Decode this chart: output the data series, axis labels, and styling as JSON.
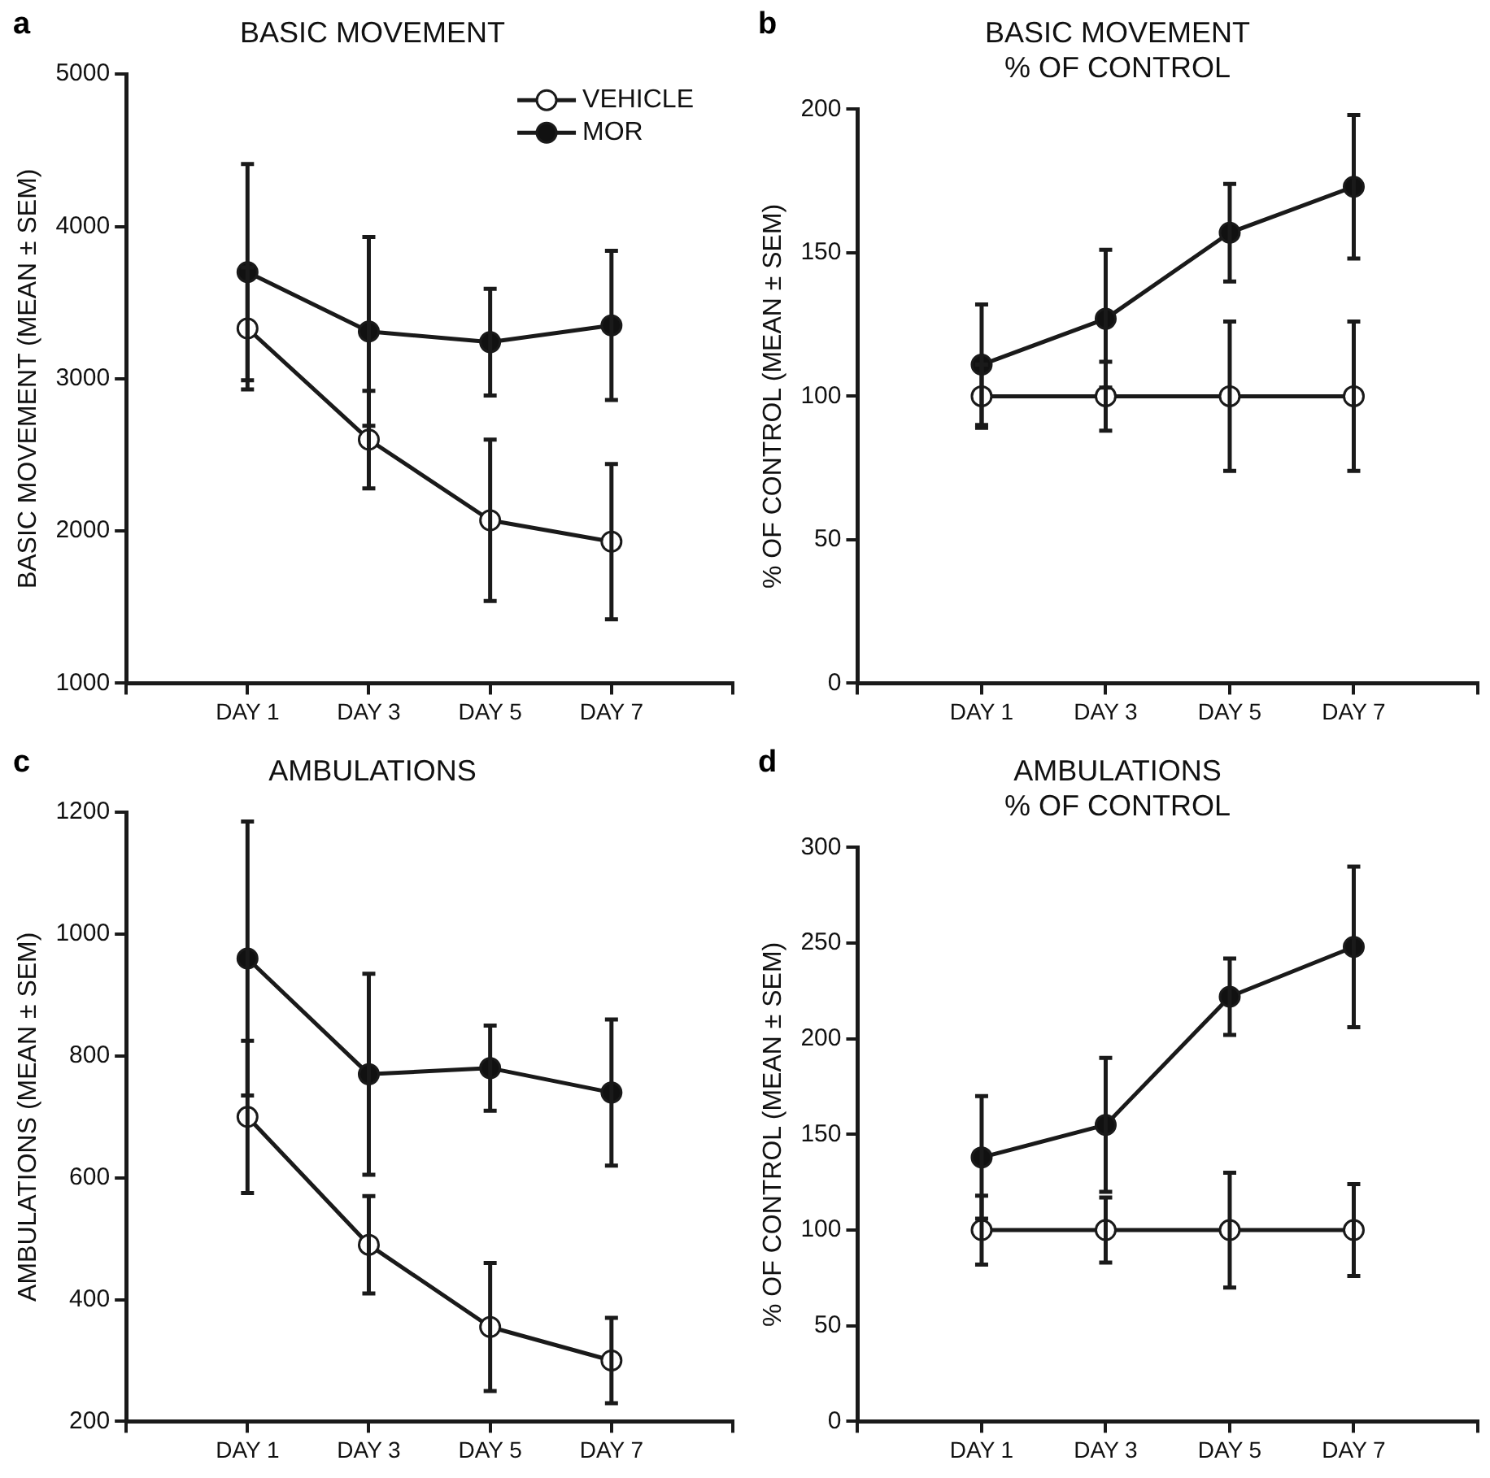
{
  "chart_data": [
    {
      "type": "line",
      "title": "BASIC MOVEMENT",
      "ylabel": "BASIC MOVEMENT (MEAN ± SEM)",
      "annotations": [
        "a"
      ],
      "categories": [
        "DAY 1",
        "DAY 3",
        "DAY 5",
        "DAY 7"
      ],
      "ylim": [
        1000,
        5000
      ],
      "yticks": [
        1000,
        2000,
        3000,
        4000,
        5000
      ],
      "grid": false,
      "legend": "top right",
      "marker": "circle",
      "series": [
        {
          "name": "VEHICLE",
          "color": "#ffffff",
          "values": [
            3330,
            2600,
            2070,
            1930
          ],
          "errors": [
            400,
            320,
            530,
            510
          ]
        },
        {
          "name": "MOR",
          "color": "#111111",
          "values": [
            3700,
            3310,
            3240,
            3350
          ],
          "errors": [
            710,
            620,
            350,
            490
          ]
        }
      ]
    },
    {
      "type": "line",
      "title": "BASIC MOVEMENT",
      "subtitle": "% OF CONTROL",
      "ylabel": "% OF CONTROL (MEAN ± SEM)",
      "annotations": [
        "b"
      ],
      "categories": [
        "DAY 1",
        "DAY 3",
        "DAY 5",
        "DAY 7"
      ],
      "ylim": [
        0,
        200
      ],
      "yticks": [
        0,
        50,
        100,
        150,
        200
      ],
      "grid": false,
      "marker": "circle",
      "series": [
        {
          "color": "#ffffff",
          "values": [
            100,
            100,
            100,
            100
          ],
          "errors": [
            11,
            12,
            26,
            26
          ]
        },
        {
          "color": "#111111",
          "values": [
            111,
            127,
            157,
            173
          ],
          "errors": [
            21,
            24,
            17,
            25
          ]
        }
      ]
    },
    {
      "type": "line",
      "title": "AMBULATIONS",
      "ylabel": "AMBULATIONS (MEAN ± SEM)",
      "annotations": [
        "c"
      ],
      "categories": [
        "DAY 1",
        "DAY 3",
        "DAY 5",
        "DAY 7"
      ],
      "ylim": [
        200,
        1200
      ],
      "yticks": [
        200,
        400,
        600,
        800,
        1000,
        1200
      ],
      "grid": false,
      "marker": "circle",
      "series": [
        {
          "color": "#ffffff",
          "values": [
            700,
            490,
            355,
            300
          ],
          "errors": [
            125,
            80,
            105,
            70
          ]
        },
        {
          "color": "#111111",
          "values": [
            960,
            770,
            780,
            740
          ],
          "errors": [
            225,
            165,
            70,
            120
          ]
        }
      ]
    },
    {
      "type": "line",
      "title": "AMBULATIONS",
      "subtitle": "% OF CONTROL",
      "ylabel": "% OF CONTROL (MEAN ± SEM)",
      "annotations": [
        "d"
      ],
      "categories": [
        "DAY 1",
        "DAY 3",
        "DAY 5",
        "DAY 7"
      ],
      "ylim": [
        0,
        300
      ],
      "yticks": [
        0,
        50,
        100,
        150,
        200,
        250,
        300
      ],
      "grid": false,
      "marker": "circle",
      "series": [
        {
          "color": "#ffffff",
          "values": [
            100,
            100,
            100,
            100
          ],
          "errors": [
            18,
            17,
            30,
            24
          ]
        },
        {
          "color": "#111111",
          "values": [
            138,
            155,
            222,
            248
          ],
          "errors": [
            32,
            35,
            20,
            42
          ]
        }
      ]
    }
  ]
}
